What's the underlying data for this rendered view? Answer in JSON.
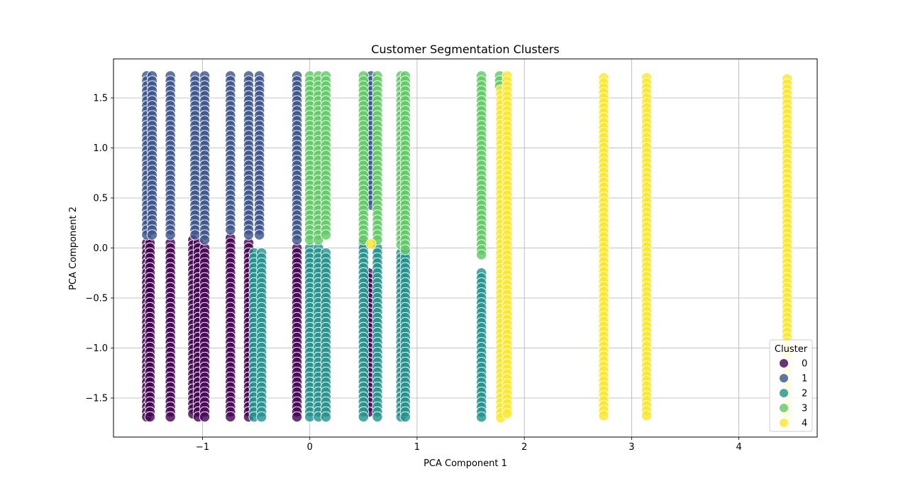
{
  "chart_data": {
    "type": "scatter",
    "title": "Customer Segmentation Clusters",
    "xlabel": "PCA Component 1",
    "ylabel": "PCA Component 2",
    "xlim": [
      -1.83,
      4.73
    ],
    "ylim": [
      -1.89,
      1.89
    ],
    "xticks": [
      -1,
      0,
      1,
      2,
      3,
      4
    ],
    "xtick_labels": [
      "−1",
      "0",
      "1",
      "2",
      "3",
      "4"
    ],
    "yticks": [
      -1.5,
      -1.0,
      -0.5,
      0.0,
      0.5,
      1.0,
      1.5
    ],
    "ytick_labels": [
      "−1.5",
      "−1.0",
      "−0.5",
      "0.0",
      "0.5",
      "1.0",
      "1.5"
    ],
    "grid": true,
    "legend": {
      "title": "Cluster",
      "placement": "lower-right",
      "entries": [
        "0",
        "1",
        "2",
        "3",
        "4"
      ]
    },
    "series": [
      {
        "name": "0",
        "color": "#440154",
        "columns": [
          {
            "x": -1.52,
            "y": [
              -1.7,
              0.05
            ]
          },
          {
            "x": -1.49,
            "y": [
              -1.7,
              0.05
            ]
          },
          {
            "x": -1.3,
            "y": [
              -1.7,
              0.05
            ]
          },
          {
            "x": -1.09,
            "y": [
              -1.7,
              0.08
            ]
          },
          {
            "x": -1.04,
            "y": [
              -1.7,
              0.05
            ]
          },
          {
            "x": -0.98,
            "y": [
              -1.7,
              0.0
            ]
          },
          {
            "x": -0.74,
            "y": [
              -1.7,
              0.1
            ]
          },
          {
            "x": -0.57,
            "y": [
              -1.7,
              0.05
            ]
          },
          {
            "x": -0.12,
            "y": [
              -1.7,
              0.0
            ]
          },
          {
            "x": 0.55,
            "y": [
              -1.65,
              -0.25
            ]
          }
        ]
      },
      {
        "name": "1",
        "color": "#3b528b",
        "columns": [
          {
            "x": -1.52,
            "y": [
              0.1,
              1.72
            ]
          },
          {
            "x": -1.47,
            "y": [
              0.1,
              1.72
            ]
          },
          {
            "x": -1.3,
            "y": [
              0.1,
              1.72
            ]
          },
          {
            "x": -1.07,
            "y": [
              0.1,
              1.72
            ]
          },
          {
            "x": -0.98,
            "y": [
              0.05,
              1.72
            ]
          },
          {
            "x": -0.74,
            "y": [
              0.15,
              1.72
            ]
          },
          {
            "x": -0.57,
            "y": [
              0.1,
              1.72
            ]
          },
          {
            "x": -0.47,
            "y": [
              0.1,
              1.72
            ]
          },
          {
            "x": -0.12,
            "y": [
              0.05,
              1.72
            ]
          },
          {
            "x": 0.57,
            "y": [
              0.4,
              1.72
            ]
          }
        ]
      },
      {
        "name": "2",
        "color": "#21918c",
        "columns": [
          {
            "x": -0.52,
            "y": [
              -1.7,
              -0.05
            ]
          },
          {
            "x": -0.45,
            "y": [
              -1.7,
              -0.05
            ]
          },
          {
            "x": 0.0,
            "y": [
              -1.7,
              0.0
            ]
          },
          {
            "x": 0.08,
            "y": [
              -1.7,
              0.0
            ]
          },
          {
            "x": 0.15,
            "y": [
              -1.7,
              -0.05
            ]
          },
          {
            "x": 0.5,
            "y": [
              -1.7,
              0.05
            ]
          },
          {
            "x": 0.63,
            "y": [
              -1.7,
              0.0
            ]
          },
          {
            "x": 0.85,
            "y": [
              -1.7,
              -0.05
            ]
          },
          {
            "x": 0.89,
            "y": [
              -1.7,
              -0.05
            ]
          },
          {
            "x": 1.6,
            "y": [
              -1.7,
              -0.25
            ]
          }
        ]
      },
      {
        "name": "3",
        "color": "#5ec962",
        "columns": [
          {
            "x": 0.0,
            "y": [
              0.05,
              1.72
            ]
          },
          {
            "x": 0.08,
            "y": [
              0.05,
              1.72
            ]
          },
          {
            "x": 0.15,
            "y": [
              0.1,
              1.72
            ]
          },
          {
            "x": 0.5,
            "y": [
              0.05,
              1.72
            ]
          },
          {
            "x": 0.63,
            "y": [
              0.05,
              1.72
            ]
          },
          {
            "x": 0.85,
            "y": [
              0.0,
              1.72
            ]
          },
          {
            "x": 0.89,
            "y": [
              -0.05,
              1.72
            ]
          },
          {
            "x": 1.6,
            "y": [
              -0.1,
              1.72
            ]
          },
          {
            "x": 1.77,
            "y": [
              1.6,
              1.72
            ]
          }
        ]
      },
      {
        "name": "4",
        "color": "#fde725",
        "columns": [
          {
            "x": 1.78,
            "y": [
              -1.7,
              1.58
            ]
          },
          {
            "x": 1.84,
            "y": [
              -1.7,
              1.72
            ]
          },
          {
            "x": 2.74,
            "y": [
              -1.7,
              1.7
            ]
          },
          {
            "x": 3.14,
            "y": [
              -1.7,
              1.7
            ]
          },
          {
            "x": 4.45,
            "y": [
              -1.7,
              1.69
            ]
          },
          {
            "x": 0.57,
            "y": [
              0.04,
              0.04
            ]
          }
        ]
      }
    ]
  }
}
